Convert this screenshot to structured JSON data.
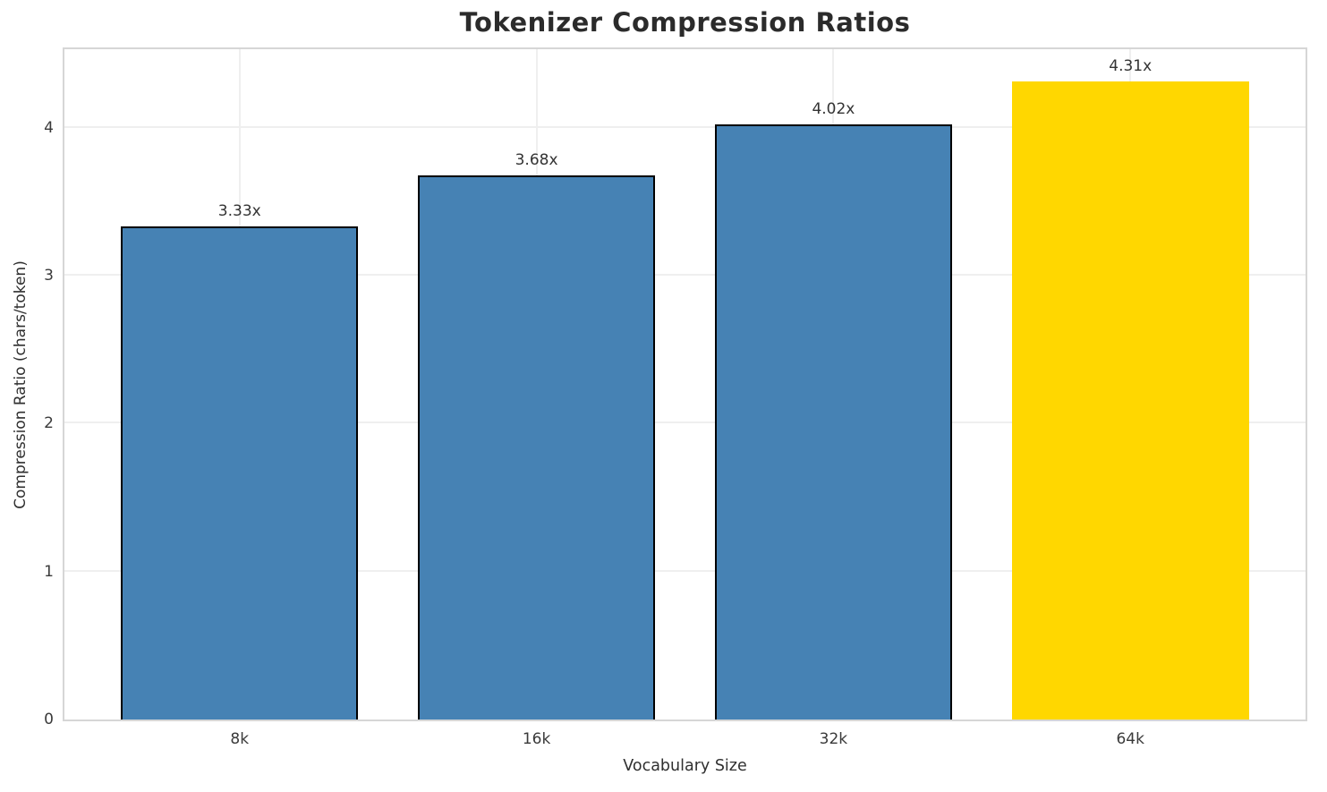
{
  "chart_data": {
    "type": "bar",
    "title": "Tokenizer Compression Ratios",
    "xlabel": "Vocabulary Size",
    "ylabel": "Compression Ratio (chars/token)",
    "categories": [
      "8k",
      "16k",
      "32k",
      "64k"
    ],
    "values": [
      3.33,
      3.68,
      4.02,
      4.31
    ],
    "bar_labels": [
      "3.33x",
      "3.68x",
      "4.02x",
      "4.31x"
    ],
    "bar_colors": [
      "#4682B4",
      "#4682B4",
      "#4682B4",
      "#FFD700"
    ],
    "bar_edge_colors": [
      "#000000",
      "#000000",
      "#000000",
      "none"
    ],
    "yticks": [
      "0",
      "1",
      "2",
      "3",
      "4"
    ],
    "ytick_values": [
      0,
      1,
      2,
      3,
      4
    ],
    "ylim": [
      0,
      4.53
    ],
    "bar_width_fraction": 0.8,
    "grid": true,
    "legend_position": "none"
  },
  "style": {
    "grid_color": "#efefef",
    "spine_color": "#d6d6d6",
    "title_color": "#2b2b2b",
    "tick_color": "#3a3a3a"
  }
}
